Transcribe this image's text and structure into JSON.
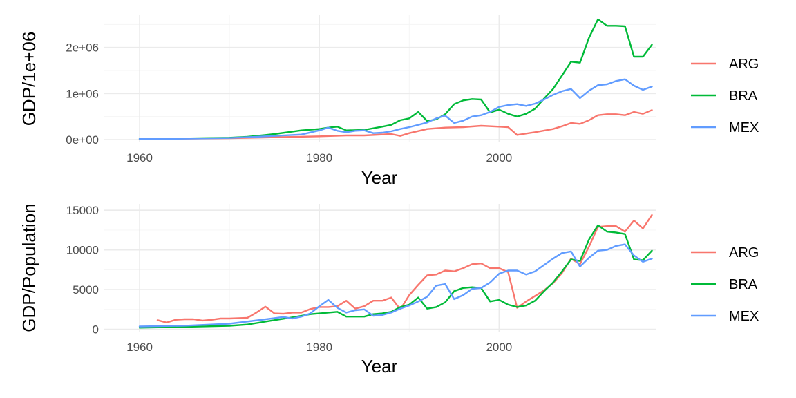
{
  "chart_data": [
    {
      "type": "line",
      "xlabel": "Year",
      "ylabel": "GDP/1e+06",
      "xlim": [
        1956,
        2017.5
      ],
      "ylim": [
        -60000,
        2700000
      ],
      "x_ticks": [
        1960,
        1980,
        2000
      ],
      "x_tick_labels": [
        "1960",
        "1980",
        "2000"
      ],
      "y_ticks": [
        0,
        1000000,
        2000000
      ],
      "y_tick_labels": [
        "0e+00",
        "1e+06",
        "2e+06"
      ],
      "grid": true,
      "legend": {
        "position": "right",
        "entries": [
          "ARG",
          "BRA",
          "MEX"
        ]
      },
      "series": [
        {
          "name": "ARG",
          "color": "#f8766d",
          "x": [
            1960,
            1965,
            1970,
            1975,
            1980,
            1983,
            1985,
            1988,
            1989,
            1990,
            1992,
            1994,
            1996,
            1998,
            2000,
            2001,
            2002,
            2004,
            2006,
            2007,
            2008,
            2009,
            2010,
            2011,
            2012,
            2013,
            2014,
            2015,
            2016,
            2017
          ],
          "y": [
            10000,
            20000,
            30000,
            50000,
            70000,
            90000,
            90000,
            120000,
            80000,
            140000,
            230000,
            260000,
            270000,
            300000,
            280000,
            270000,
            100000,
            160000,
            230000,
            290000,
            360000,
            340000,
            420000,
            530000,
            550000,
            550000,
            530000,
            600000,
            560000,
            640000
          ]
        },
        {
          "name": "BRA",
          "color": "#00ba38",
          "x": [
            1960,
            1965,
            1970,
            1972,
            1975,
            1978,
            1980,
            1981,
            1982,
            1983,
            1985,
            1987,
            1988,
            1989,
            1990,
            1991,
            1992,
            1993,
            1994,
            1995,
            1996,
            1997,
            1998,
            1999,
            2000,
            2001,
            2002,
            2003,
            2004,
            2005,
            2006,
            2007,
            2008,
            2009,
            2010,
            2011,
            2012,
            2013,
            2014,
            2015,
            2016,
            2017
          ],
          "y": [
            15000,
            25000,
            40000,
            60000,
            120000,
            200000,
            230000,
            260000,
            280000,
            200000,
            210000,
            280000,
            320000,
            420000,
            460000,
            600000,
            400000,
            440000,
            550000,
            770000,
            850000,
            880000,
            870000,
            590000,
            650000,
            560000,
            500000,
            560000,
            670000,
            890000,
            1100000,
            1390000,
            1690000,
            1670000,
            2210000,
            2610000,
            2470000,
            2470000,
            2460000,
            1800000,
            1800000,
            2060000
          ]
        },
        {
          "name": "MEX",
          "color": "#619cff",
          "x": [
            1960,
            1965,
            1970,
            1975,
            1978,
            1980,
            1981,
            1982,
            1983,
            1984,
            1985,
            1986,
            1987,
            1988,
            1989,
            1990,
            1991,
            1992,
            1993,
            1994,
            1995,
            1996,
            1997,
            1998,
            1999,
            2000,
            2001,
            2002,
            2003,
            2004,
            2005,
            2006,
            2007,
            2008,
            2009,
            2010,
            2011,
            2012,
            2013,
            2014,
            2015,
            2016,
            2017
          ],
          "y": [
            13000,
            20000,
            35000,
            80000,
            110000,
            200000,
            260000,
            190000,
            160000,
            190000,
            200000,
            140000,
            150000,
            180000,
            230000,
            270000,
            320000,
            370000,
            460000,
            520000,
            360000,
            410000,
            500000,
            530000,
            600000,
            710000,
            750000,
            770000,
            730000,
            780000,
            870000,
            970000,
            1050000,
            1100000,
            900000,
            1060000,
            1180000,
            1200000,
            1270000,
            1310000,
            1170000,
            1080000,
            1150000
          ]
        }
      ]
    },
    {
      "type": "line",
      "xlabel": "Year",
      "ylabel": "GDP/Population",
      "xlim": [
        1956,
        2017.5
      ],
      "ylim": [
        -300,
        15800
      ],
      "x_ticks": [
        1960,
        1980,
        2000
      ],
      "x_tick_labels": [
        "1960",
        "1980",
        "2000"
      ],
      "y_ticks": [
        0,
        5000,
        10000,
        15000
      ],
      "y_tick_labels": [
        "0",
        "5000",
        "10000",
        "15000"
      ],
      "grid": true,
      "legend": {
        "position": "right",
        "entries": [
          "ARG",
          "BRA",
          "MEX"
        ]
      },
      "series": [
        {
          "name": "ARG",
          "color": "#f8766d",
          "x": [
            1962,
            1963,
            1964,
            1965,
            1966,
            1967,
            1968,
            1969,
            1970,
            1971,
            1972,
            1973,
            1974,
            1975,
            1976,
            1977,
            1978,
            1979,
            1980,
            1981,
            1982,
            1983,
            1984,
            1985,
            1986,
            1987,
            1988,
            1989,
            1990,
            1991,
            1992,
            1993,
            1994,
            1995,
            1996,
            1997,
            1998,
            1999,
            2000,
            2001,
            2002,
            2003,
            2004,
            2005,
            2006,
            2007,
            2008,
            2009,
            2010,
            2011,
            2012,
            2013,
            2014,
            2015,
            2016,
            2017
          ],
          "y": [
            1150,
            850,
            1200,
            1270,
            1270,
            1100,
            1200,
            1350,
            1350,
            1400,
            1450,
            2100,
            2850,
            2000,
            1950,
            2100,
            2100,
            2550,
            2800,
            2800,
            2900,
            3600,
            2600,
            2900,
            3600,
            3600,
            4000,
            2500,
            4300,
            5600,
            6800,
            6900,
            7400,
            7300,
            7700,
            8200,
            8300,
            7700,
            7700,
            7200,
            2700,
            3500,
            4200,
            4900,
            5800,
            7100,
            8900,
            8200,
            10400,
            12900,
            13000,
            13000,
            12300,
            13700,
            12700,
            14400
          ]
        },
        {
          "name": "BRA",
          "color": "#00ba38",
          "x": [
            1960,
            1965,
            1970,
            1972,
            1975,
            1977,
            1978,
            1979,
            1980,
            1981,
            1982,
            1983,
            1984,
            1985,
            1986,
            1987,
            1988,
            1989,
            1990,
            1991,
            1992,
            1993,
            1994,
            1995,
            1996,
            1997,
            1998,
            1999,
            2000,
            2001,
            2002,
            2003,
            2004,
            2005,
            2006,
            2007,
            2008,
            2009,
            2010,
            2011,
            2012,
            2013,
            2014,
            2015,
            2016,
            2017
          ],
          "y": [
            200,
            300,
            440,
            600,
            1150,
            1500,
            1700,
            1900,
            2000,
            2100,
            2200,
            1600,
            1600,
            1600,
            1900,
            2000,
            2200,
            2800,
            3100,
            4000,
            2600,
            2800,
            3400,
            4800,
            5200,
            5300,
            5200,
            3500,
            3700,
            3100,
            2800,
            3000,
            3600,
            4800,
            5900,
            7300,
            8800,
            8600,
            11300,
            13100,
            12300,
            12200,
            12000,
            8800,
            8700,
            9900
          ]
        },
        {
          "name": "MEX",
          "color": "#619cff",
          "x": [
            1960,
            1965,
            1970,
            1975,
            1976,
            1977,
            1978,
            1979,
            1980,
            1981,
            1982,
            1983,
            1984,
            1985,
            1986,
            1987,
            1988,
            1989,
            1990,
            1991,
            1992,
            1993,
            1994,
            1995,
            1996,
            1997,
            1998,
            1999,
            2000,
            2001,
            2002,
            2003,
            2004,
            2005,
            2006,
            2007,
            2008,
            2009,
            2010,
            2011,
            2012,
            2013,
            2014,
            2015,
            2016,
            2017
          ],
          "y": [
            350,
            450,
            700,
            1400,
            1550,
            1350,
            1600,
            2000,
            2900,
            3700,
            2700,
            2100,
            2400,
            2500,
            1700,
            1800,
            2100,
            2600,
            3000,
            3500,
            4100,
            5500,
            5700,
            3800,
            4300,
            5100,
            5200,
            5900,
            7000,
            7400,
            7400,
            6900,
            7300,
            8100,
            8900,
            9600,
            9800,
            7900,
            9000,
            9900,
            10000,
            10500,
            10700,
            9300,
            8500,
            8900
          ]
        }
      ]
    }
  ]
}
